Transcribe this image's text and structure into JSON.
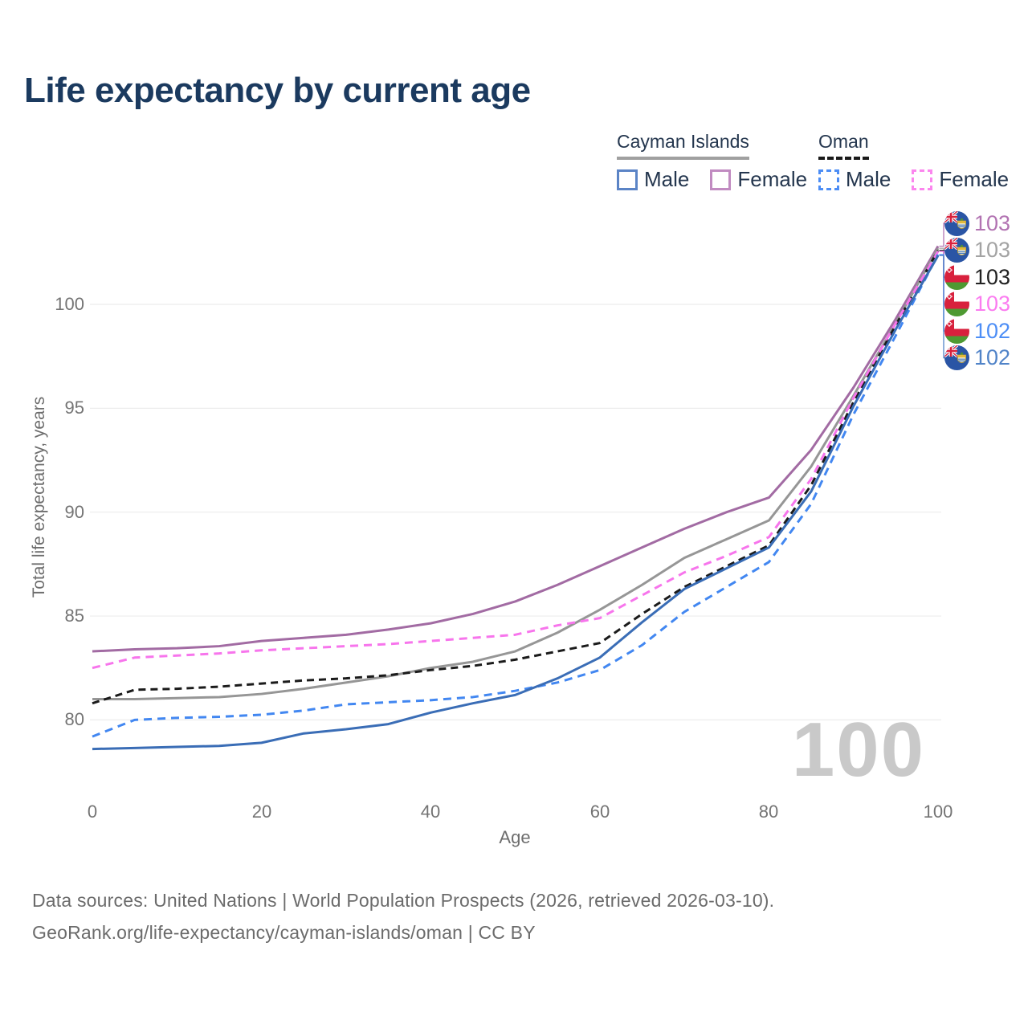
{
  "title": "Life expectancy by current age",
  "legend": {
    "groups": [
      {
        "name": "Cayman Islands",
        "underline_color": "#a0a0a0",
        "items": [
          {
            "label": "Male",
            "color": "#5b84c6"
          },
          {
            "label": "Female",
            "color": "#c18bc1"
          }
        ]
      },
      {
        "name": "Oman",
        "underline_color": "#1a1a1a",
        "items": [
          {
            "label": "Male",
            "color": "#4c8df5"
          },
          {
            "label": "Female",
            "color": "#fb86ee"
          }
        ]
      }
    ]
  },
  "chart_data": {
    "type": "line",
    "title": "Life expectancy by current age",
    "xlabel": "Age",
    "ylabel": "Total life expectancy, years",
    "x": [
      0,
      5,
      10,
      15,
      20,
      25,
      30,
      35,
      40,
      45,
      50,
      55,
      60,
      65,
      70,
      75,
      80,
      85,
      90,
      95,
      100
    ],
    "xticks": [
      0,
      20,
      40,
      60,
      80,
      100
    ],
    "yticks": [
      80,
      85,
      90,
      95,
      100
    ],
    "xlim": [
      0,
      100
    ],
    "ylim": [
      77.5,
      104
    ],
    "grid": "horizontal",
    "legend_position": "top-right",
    "watermark": "100",
    "series": [
      {
        "name": "Cayman Islands Female",
        "color": "#a26ba3",
        "label_color": "#b273b2",
        "style": "solid",
        "end_label": "103",
        "flag": "cayman-islands",
        "values": [
          83.3,
          83.4,
          83.45,
          83.55,
          83.8,
          83.95,
          84.1,
          84.35,
          84.65,
          85.1,
          85.7,
          86.5,
          87.4,
          88.3,
          89.2,
          90.0,
          90.7,
          93.0,
          96.0,
          99.3,
          102.8
        ]
      },
      {
        "name": "Cayman Islands Total",
        "color": "#969696",
        "label_color": "#a3a3a3",
        "style": "solid",
        "end_label": "103",
        "flag": "cayman-islands",
        "values": [
          81.0,
          81.0,
          81.05,
          81.1,
          81.25,
          81.5,
          81.8,
          82.1,
          82.5,
          82.8,
          83.3,
          84.2,
          85.3,
          86.5,
          87.8,
          88.7,
          89.6,
          92.2,
          95.6,
          99.1,
          102.7
        ]
      },
      {
        "name": "Oman Total",
        "color": "#1b1b1b",
        "label_color": "#222222",
        "style": "dashed",
        "dash": "9 6",
        "end_label": "103",
        "flag": "oman",
        "values": [
          80.8,
          81.45,
          81.5,
          81.6,
          81.75,
          81.9,
          82.0,
          82.15,
          82.4,
          82.6,
          82.9,
          83.3,
          83.7,
          85.1,
          86.4,
          87.4,
          88.4,
          91.3,
          95.3,
          99.0,
          102.6
        ]
      },
      {
        "name": "Oman Female",
        "color": "#f775ec",
        "label_color": "#fb7cf0",
        "style": "dashed",
        "dash": "10 7",
        "end_label": "103",
        "flag": "oman",
        "values": [
          82.5,
          83.0,
          83.1,
          83.2,
          83.35,
          83.45,
          83.55,
          83.65,
          83.8,
          83.95,
          84.1,
          84.55,
          84.9,
          86.0,
          87.1,
          87.9,
          88.8,
          91.6,
          95.5,
          99.1,
          102.55
        ]
      },
      {
        "name": "Oman Male",
        "color": "#4287f1",
        "label_color": "#4d8ef6",
        "style": "dashed",
        "dash": "10 7",
        "end_label": "102",
        "flag": "oman",
        "values": [
          79.2,
          80.0,
          80.1,
          80.15,
          80.25,
          80.45,
          80.75,
          80.85,
          80.95,
          81.1,
          81.4,
          81.8,
          82.4,
          83.6,
          85.2,
          86.4,
          87.6,
          90.4,
          94.7,
          98.5,
          102.4
        ]
      },
      {
        "name": "Cayman Islands Male",
        "color": "#3a6db6",
        "label_color": "#5083c8",
        "style": "solid",
        "end_label": "102",
        "flag": "cayman-islands",
        "values": [
          78.6,
          78.65,
          78.7,
          78.75,
          78.9,
          79.35,
          79.55,
          79.8,
          80.35,
          80.8,
          81.2,
          82.0,
          83.0,
          84.7,
          86.3,
          87.3,
          88.3,
          91.0,
          95.1,
          98.8,
          102.35
        ]
      }
    ]
  },
  "footer": {
    "line1": "Data sources: United Nations | World Population Prospects (2026, retrieved 2026-03-10).",
    "line2": "GeoRank.org/life-expectancy/cayman-islands/oman | CC BY"
  }
}
